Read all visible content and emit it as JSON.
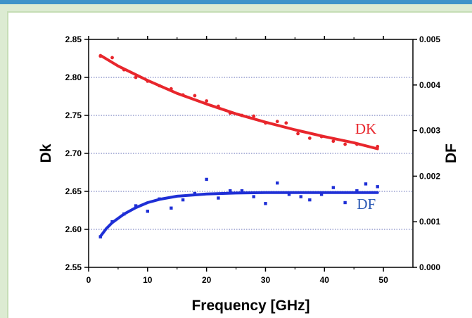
{
  "chart_data": {
    "type": "scatter",
    "xlabel": "Frequency [GHz]",
    "ylabel_left": "Dk",
    "ylabel_right": "DF",
    "xlim": [
      0,
      55
    ],
    "ylim_left": [
      2.55,
      2.85
    ],
    "ylim_right": [
      0.0,
      0.005
    ],
    "x_ticks": [
      "0",
      "10",
      "20",
      "30",
      "40",
      "50"
    ],
    "y_ticks_left": [
      "2.55",
      "2.60",
      "2.65",
      "2.70",
      "2.75",
      "2.80",
      "2.85"
    ],
    "y_ticks_right": [
      "0.000",
      "0.001",
      "0.002",
      "0.003",
      "0.004",
      "0.005"
    ],
    "grid": "horizontal dotted",
    "series": [
      {
        "name": "DK",
        "axis": "left",
        "color": "#e8262c",
        "marker": "circle",
        "points": [
          [
            2,
            2.828
          ],
          [
            4,
            2.826
          ],
          [
            6,
            2.81
          ],
          [
            8,
            2.8
          ],
          [
            10,
            2.795
          ],
          [
            12,
            2.789
          ],
          [
            14,
            2.785
          ],
          [
            16,
            2.777
          ],
          [
            18,
            2.776
          ],
          [
            20,
            2.769
          ],
          [
            22,
            2.762
          ],
          [
            24,
            2.753
          ],
          [
            26,
            2.75
          ],
          [
            28,
            2.749
          ],
          [
            30,
            2.74
          ],
          [
            32,
            2.742
          ],
          [
            33.5,
            2.74
          ],
          [
            35.5,
            2.726
          ],
          [
            37.5,
            2.72
          ],
          [
            39.5,
            2.722
          ],
          [
            41.5,
            2.716
          ],
          [
            43.5,
            2.712
          ],
          [
            45.5,
            2.712
          ],
          [
            49,
            2.709
          ]
        ],
        "fit": [
          [
            2,
            2.829
          ],
          [
            5,
            2.815
          ],
          [
            10,
            2.796
          ],
          [
            15,
            2.779
          ],
          [
            20,
            2.765
          ],
          [
            25,
            2.752
          ],
          [
            30,
            2.741
          ],
          [
            35,
            2.731
          ],
          [
            40,
            2.722
          ],
          [
            45,
            2.714
          ],
          [
            49,
            2.706
          ]
        ]
      },
      {
        "name": "DF",
        "axis": "right",
        "color": "#1e2fd6",
        "marker": "square",
        "points": [
          [
            2,
            0.00067
          ],
          [
            4,
            0.001
          ],
          [
            6,
            0.00117
          ],
          [
            8,
            0.00135
          ],
          [
            10,
            0.00123
          ],
          [
            12,
            0.0015
          ],
          [
            14,
            0.0013
          ],
          [
            16,
            0.00148
          ],
          [
            18,
            0.00162
          ],
          [
            20,
            0.00193
          ],
          [
            22,
            0.00152
          ],
          [
            24,
            0.00168
          ],
          [
            26,
            0.00168
          ],
          [
            28,
            0.00155
          ],
          [
            30,
            0.0014
          ],
          [
            32,
            0.00185
          ],
          [
            34,
            0.0016
          ],
          [
            36,
            0.00155
          ],
          [
            37.5,
            0.00148
          ],
          [
            39.5,
            0.0016
          ],
          [
            41.5,
            0.00175
          ],
          [
            43.5,
            0.00142
          ],
          [
            45.5,
            0.00168
          ],
          [
            47,
            0.00183
          ],
          [
            49,
            0.00177
          ]
        ],
        "fit": [
          [
            2,
            0.00068
          ],
          [
            3,
            0.00085
          ],
          [
            4,
            0.00098
          ],
          [
            6,
            0.00117
          ],
          [
            8,
            0.00131
          ],
          [
            10,
            0.00142
          ],
          [
            12,
            0.00149
          ],
          [
            15,
            0.00156
          ],
          [
            20,
            0.00161
          ],
          [
            25,
            0.00163
          ],
          [
            30,
            0.00164
          ],
          [
            40,
            0.00164
          ],
          [
            49,
            0.00164
          ]
        ]
      }
    ],
    "series_labels": {
      "dk": "DK",
      "df": "DF"
    }
  }
}
